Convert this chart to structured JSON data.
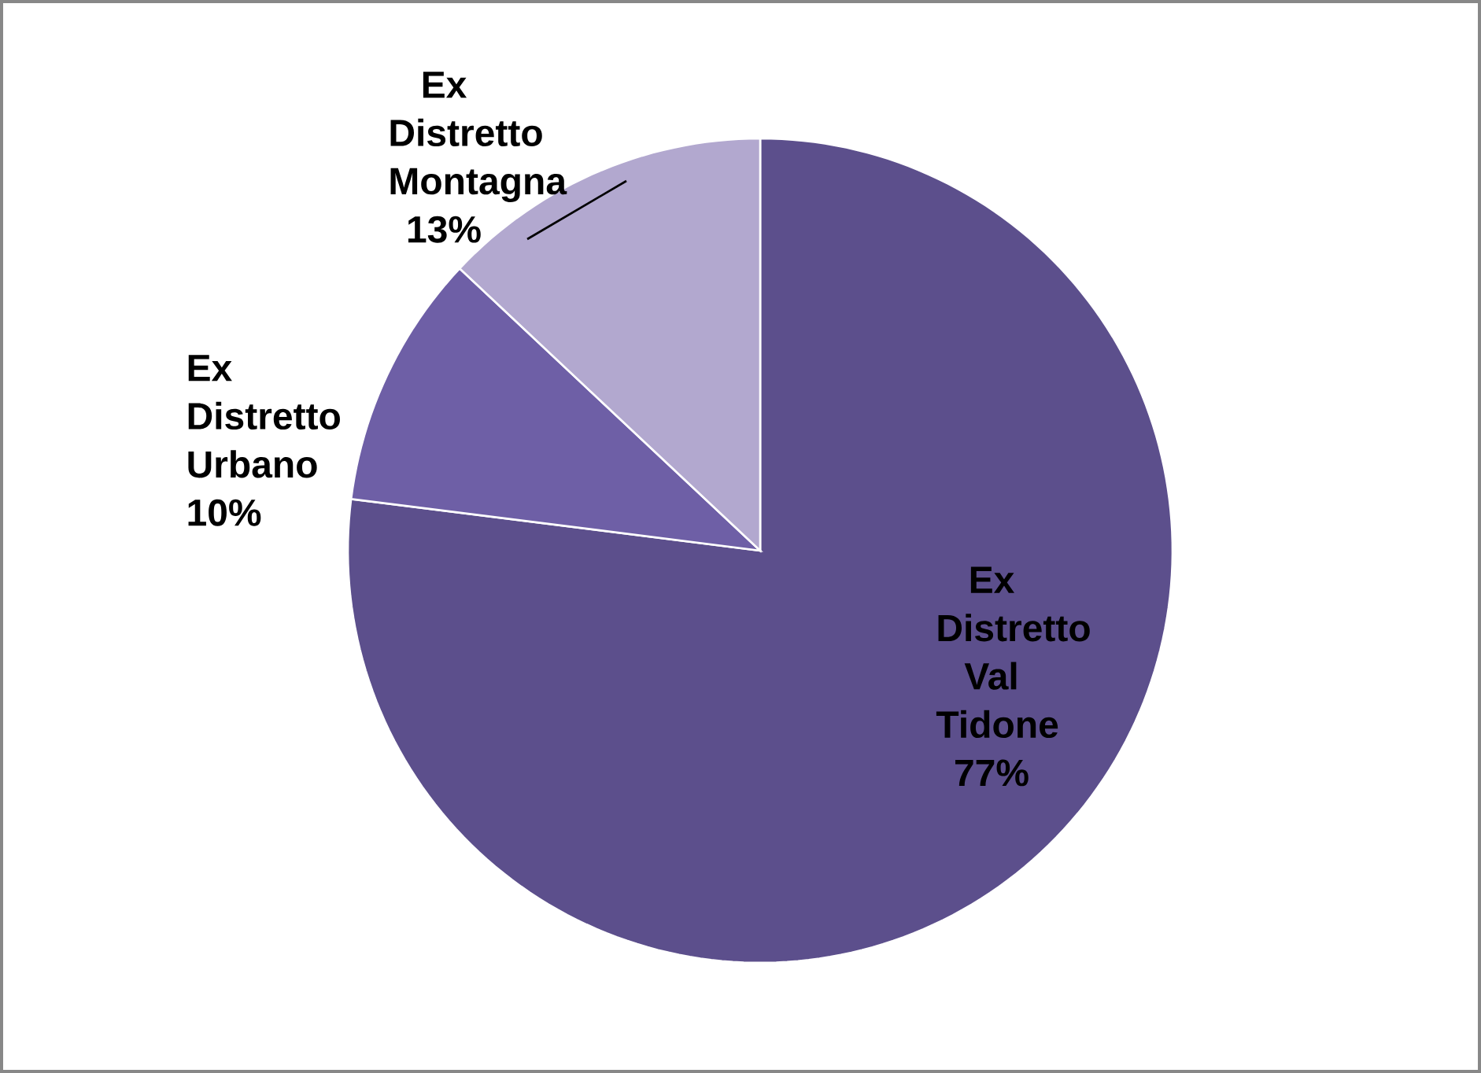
{
  "chart_data": {
    "type": "pie",
    "categories": [
      "Ex Distretto Val Tidone",
      "Ex Distretto Urbano",
      "Ex Distretto Montagna"
    ],
    "values": [
      77,
      10,
      13
    ],
    "value_labels": [
      "77%",
      "10%",
      "13%"
    ],
    "colors": [
      "#5c4f8c",
      "#6e5fa6",
      "#b2a8cf"
    ]
  }
}
